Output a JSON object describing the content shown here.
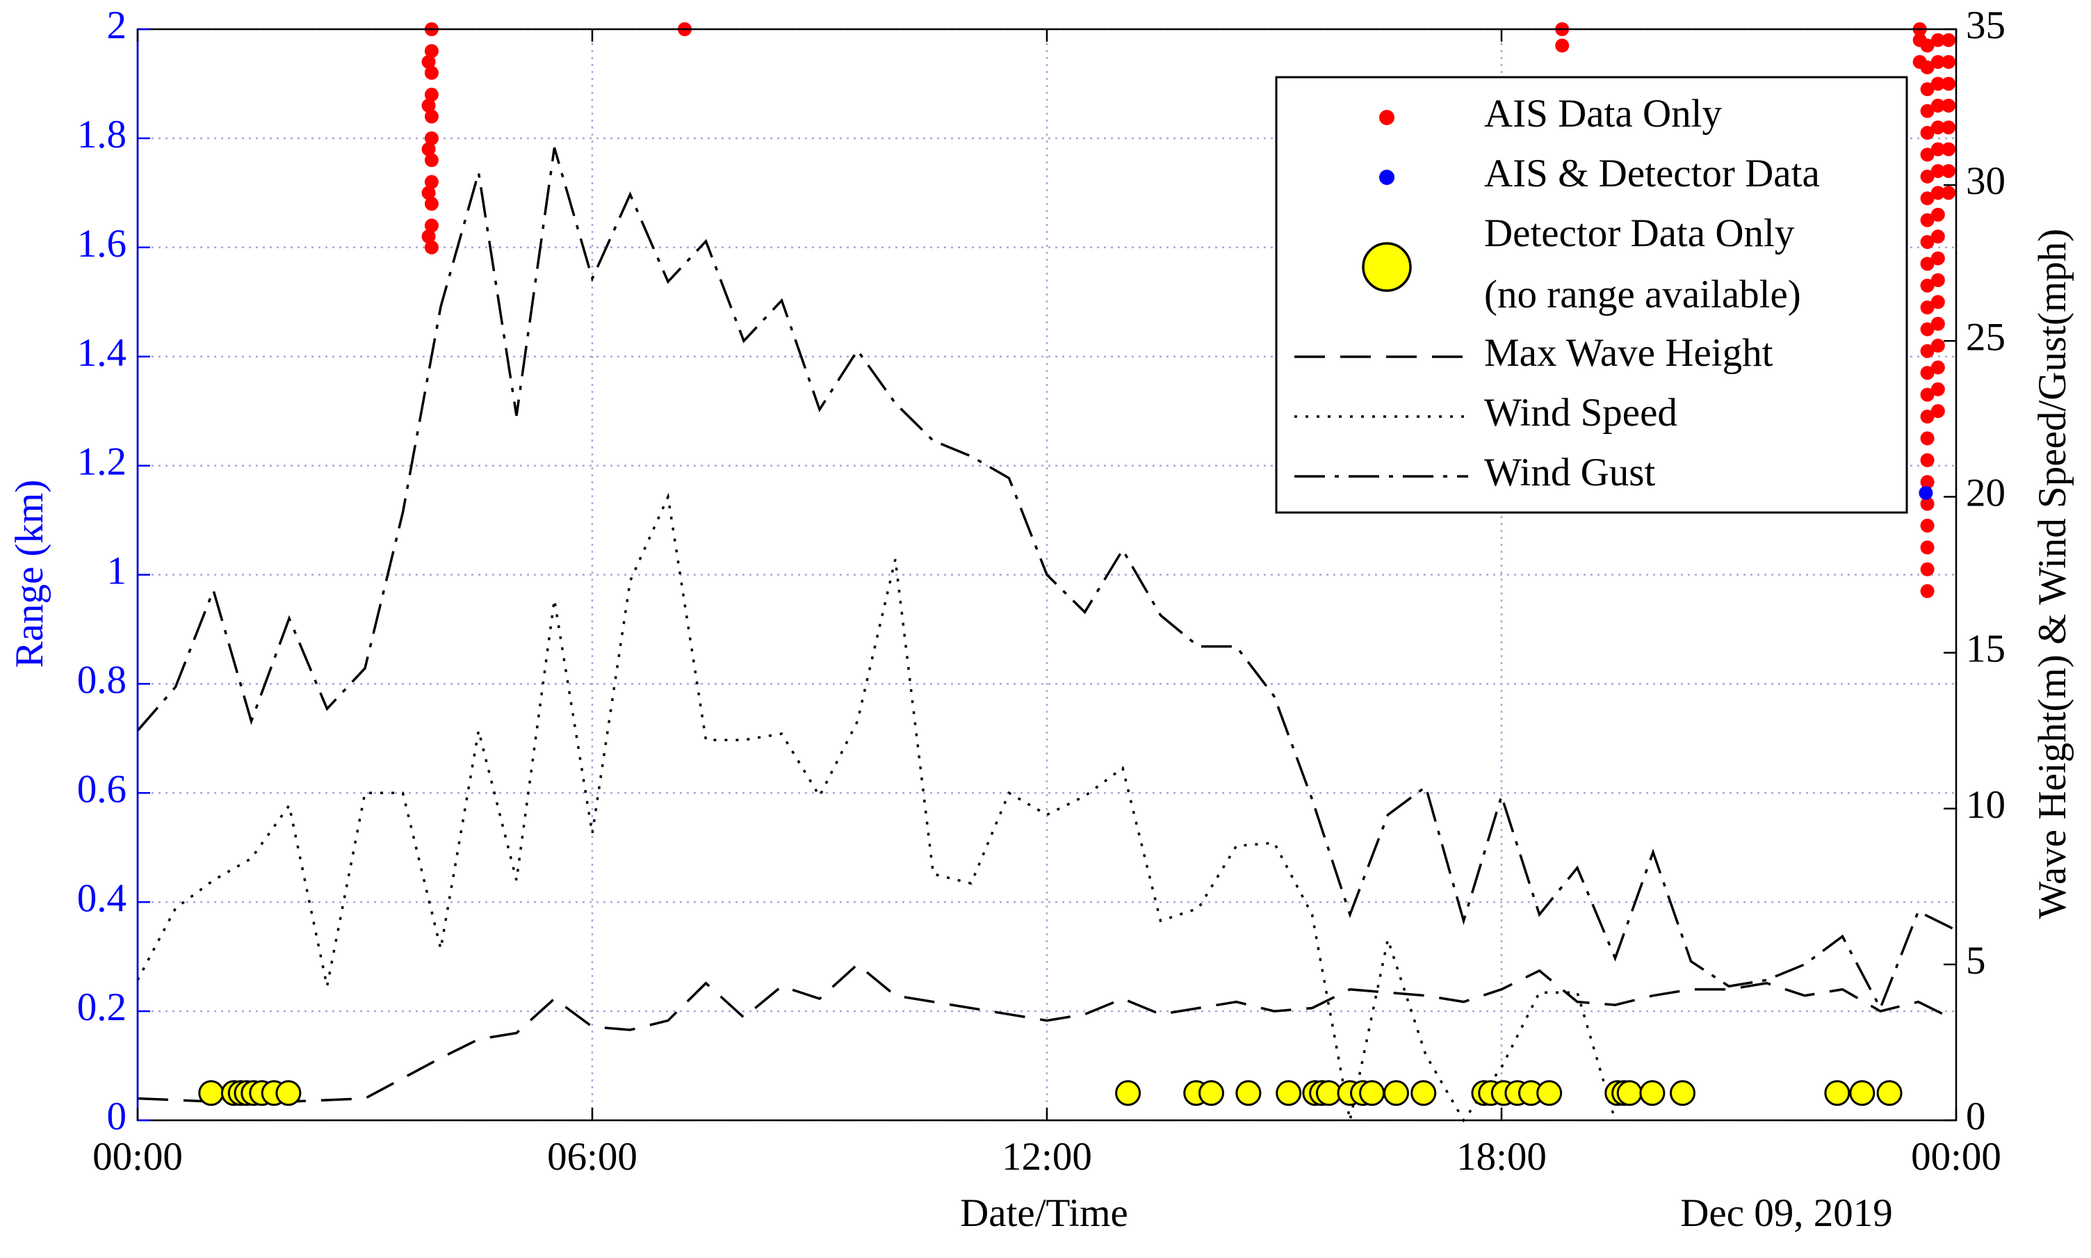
{
  "chart_data": {
    "type": "line",
    "xlabel": "Date/Time",
    "date_note": "Dec 09, 2019",
    "ylabel": "Range (km)",
    "y2label": "Wave Height(m) & Wind Speed/Gust(mph)",
    "xlim": [
      0,
      24
    ],
    "xticks": [
      {
        "value": 0,
        "label": "00:00"
      },
      {
        "value": 6,
        "label": "06:00"
      },
      {
        "value": 12,
        "label": "12:00"
      },
      {
        "value": 18,
        "label": "18:00"
      },
      {
        "value": 24,
        "label": "00:00"
      }
    ],
    "ylim": [
      0,
      2
    ],
    "yticks": [
      0,
      0.2,
      0.4,
      0.6,
      0.8,
      1,
      1.2,
      1.4,
      1.6,
      1.8,
      2
    ],
    "y2lim": [
      0,
      35
    ],
    "y2ticks": [
      0,
      5,
      10,
      15,
      20,
      25,
      30,
      35
    ],
    "grid": true,
    "legend": "upper right",
    "series": [
      {
        "name": "AIS Data Only",
        "type": "scatter",
        "color": "#ff0000",
        "x": [
          3.88,
          3.88,
          3.88,
          3.88,
          3.88,
          3.88,
          3.88,
          3.88,
          3.88,
          3.88,
          3.88,
          3.84,
          3.84,
          3.84,
          3.84,
          3.84,
          7.22,
          18.8,
          18.8,
          23.52,
          23.52,
          23.52,
          23.62,
          23.62,
          23.62,
          23.62,
          23.62,
          23.62,
          23.62,
          23.62,
          23.62,
          23.62,
          23.62,
          23.62,
          23.62,
          23.62,
          23.62,
          23.62,
          23.62,
          23.62,
          23.62,
          23.62,
          23.62,
          23.62,
          23.62,
          23.62,
          23.62,
          23.62,
          23.76,
          23.76,
          23.76,
          23.76,
          23.76,
          23.76,
          23.76,
          23.76,
          23.76,
          23.76,
          23.76,
          23.76,
          23.76,
          23.76,
          23.76,
          23.76,
          23.76,
          23.76,
          23.9,
          23.9,
          23.9,
          23.9,
          23.9,
          23.9,
          23.9,
          23.9
        ],
        "values": [
          1.6,
          1.64,
          1.68,
          1.72,
          1.76,
          1.8,
          1.84,
          1.88,
          1.92,
          1.96,
          2.0,
          1.62,
          1.7,
          1.78,
          1.86,
          1.94,
          2.0,
          1.97,
          2.0,
          1.94,
          1.98,
          2.0,
          0.97,
          1.01,
          1.05,
          1.09,
          1.13,
          1.17,
          1.21,
          1.25,
          1.29,
          1.33,
          1.37,
          1.41,
          1.45,
          1.49,
          1.53,
          1.57,
          1.61,
          1.65,
          1.69,
          1.73,
          1.77,
          1.81,
          1.85,
          1.89,
          1.93,
          1.97,
          1.3,
          1.34,
          1.38,
          1.42,
          1.46,
          1.5,
          1.54,
          1.58,
          1.62,
          1.66,
          1.7,
          1.74,
          1.78,
          1.82,
          1.86,
          1.9,
          1.94,
          1.98,
          1.7,
          1.74,
          1.78,
          1.82,
          1.86,
          1.9,
          1.94,
          1.98
        ]
      },
      {
        "name": "AIS & Detector Data",
        "type": "scatter",
        "color": "#0000ff",
        "x": [
          23.6
        ],
        "values": [
          1.15
        ]
      },
      {
        "name": "Detector Data Only",
        "note": "(no range available)",
        "type": "circles",
        "color": "#ffff00",
        "x": [
          0.97,
          1.27,
          1.36,
          1.44,
          1.53,
          1.64,
          1.8,
          1.99,
          13.07,
          13.97,
          14.17,
          14.66,
          15.19,
          15.54,
          15.63,
          15.72,
          16.0,
          16.17,
          16.29,
          16.61,
          16.97,
          17.77,
          17.86,
          18.03,
          18.21,
          18.39,
          18.63,
          19.53,
          19.62,
          19.69,
          19.99,
          20.39,
          22.43,
          22.76,
          23.12
        ],
        "values": [
          0.05,
          0.05,
          0.05,
          0.05,
          0.05,
          0.05,
          0.05,
          0.05,
          0.05,
          0.05,
          0.05,
          0.05,
          0.05,
          0.05,
          0.05,
          0.05,
          0.05,
          0.05,
          0.05,
          0.05,
          0.05,
          0.05,
          0.05,
          0.05,
          0.05,
          0.05,
          0.05,
          0.05,
          0.05,
          0.05,
          0.05,
          0.05,
          0.05,
          0.05,
          0.05
        ]
      },
      {
        "name": "Max Wave Height",
        "type": "line",
        "dash": "long-dash",
        "color": "#000000",
        "axis": "y2",
        "x": [
          0,
          1,
          2,
          3,
          4,
          4.5,
          5,
          5.5,
          6,
          6.5,
          7,
          7.5,
          8,
          8.5,
          9,
          9.5,
          10,
          10.5,
          11,
          11.5,
          12,
          12.5,
          13,
          13.5,
          14,
          14.5,
          15,
          15.5,
          16,
          16.5,
          17,
          17.5,
          18,
          18.5,
          19,
          19.5,
          20,
          20.5,
          21,
          21.5,
          22,
          22.5,
          23,
          23.5,
          24
        ],
        "values": [
          0.7,
          0.6,
          0.6,
          0.7,
          2.0,
          2.6,
          2.8,
          3.9,
          3.0,
          2.9,
          3.2,
          4.4,
          3.3,
          4.3,
          3.9,
          5.0,
          4.0,
          3.8,
          3.6,
          3.4,
          3.2,
          3.4,
          3.9,
          3.4,
          3.6,
          3.8,
          3.5,
          3.6,
          4.2,
          4.1,
          4.0,
          3.8,
          4.2,
          4.8,
          3.8,
          3.7,
          4.0,
          4.2,
          4.2,
          4.4,
          4.0,
          4.2,
          3.5,
          3.8,
          3.2
        ]
      },
      {
        "name": "Wind Speed",
        "type": "line",
        "dash": "dot",
        "color": "#000000",
        "axis": "y2",
        "x": [
          0,
          0.5,
          1,
          1.5,
          2,
          2.5,
          3,
          3.5,
          4,
          4.5,
          5,
          5.5,
          6,
          6.5,
          7,
          7.5,
          8,
          8.5,
          9,
          9.5,
          10,
          10.5,
          11,
          11.5,
          12,
          12.5,
          13,
          13.5,
          14,
          14.5,
          15,
          15.5,
          16,
          16.5,
          17,
          17.5,
          18,
          18.5,
          19,
          19.5
        ],
        "values": [
          4.5,
          6.8,
          7.7,
          8.4,
          10.1,
          4.3,
          10.5,
          10.5,
          5.5,
          12.5,
          7.7,
          16.7,
          9.2,
          17.3,
          20.0,
          12.2,
          12.2,
          12.4,
          10.4,
          12.8,
          18.0,
          7.9,
          7.6,
          10.5,
          9.8,
          10.4,
          11.3,
          6.4,
          6.8,
          8.8,
          8.9,
          6.6,
          0,
          5.8,
          2.1,
          0,
          1.7,
          4.1,
          4.1,
          0
        ]
      },
      {
        "name": "Wind Gust",
        "type": "line",
        "dash": "dash-dot",
        "color": "#000000",
        "axis": "y2",
        "x": [
          0,
          0.5,
          1,
          1.5,
          2,
          2.5,
          3,
          3.5,
          4,
          4.5,
          5,
          5.5,
          6,
          6.5,
          7,
          7.5,
          8,
          8.5,
          9,
          9.5,
          10,
          10.5,
          11,
          11.5,
          12,
          12.5,
          13,
          13.5,
          14,
          14.5,
          15,
          15.5,
          16,
          16.5,
          17,
          17.5,
          18,
          18.5,
          19,
          19.5,
          20,
          20.5,
          21,
          21.5,
          22,
          22.5,
          23,
          23.5,
          24
        ],
        "values": [
          12.5,
          13.9,
          17.0,
          12.8,
          16.1,
          13.2,
          14.5,
          19.5,
          26.1,
          30.4,
          22.6,
          31.2,
          27.0,
          29.7,
          26.9,
          28.2,
          25.0,
          26.3,
          22.8,
          24.7,
          23.0,
          21.8,
          21.3,
          20.6,
          17.5,
          16.3,
          18.3,
          16.2,
          15.2,
          15.2,
          13.6,
          10.3,
          6.6,
          9.8,
          10.7,
          6.4,
          10.4,
          6.6,
          8.1,
          5.2,
          8.6,
          5.1,
          4.3,
          4.5,
          5.0,
          5.9,
          3.6,
          6.7,
          6.1
        ]
      }
    ]
  }
}
